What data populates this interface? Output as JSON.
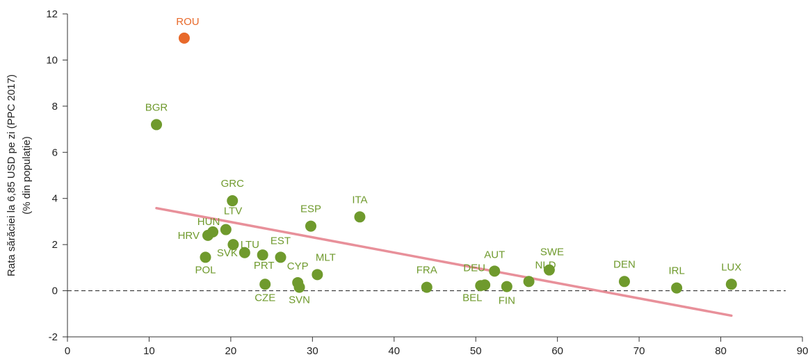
{
  "chart_data": {
    "type": "scatter",
    "title": "",
    "xlabel": "",
    "ylabel": "Rata sărăciei la 6,85 USD pe zi (PPC 2017)",
    "ylabel_sub": "(% din populație)",
    "xlim": [
      0,
      90
    ],
    "ylim": [
      -2,
      12
    ],
    "xticks": [
      0,
      10,
      20,
      30,
      40,
      50,
      60,
      70,
      80,
      90
    ],
    "yticks": [
      -2,
      0,
      2,
      4,
      6,
      8,
      10,
      12
    ],
    "grid": false,
    "legend": "none",
    "colors": {
      "points": "#6f9a2d",
      "highlight": "#e8692a",
      "trend": "#e8909a",
      "zero_line": "#333333",
      "axis": "#333333"
    },
    "points": [
      {
        "label": "ROU",
        "x": 14.3,
        "y": 10.95,
        "highlight": true
      },
      {
        "label": "BGR",
        "x": 10.9,
        "y": 7.2
      },
      {
        "label": "GRC",
        "x": 20.2,
        "y": 3.9
      },
      {
        "label": "ITA",
        "x": 35.8,
        "y": 3.2
      },
      {
        "label": "ESP",
        "x": 29.8,
        "y": 2.8
      },
      {
        "label": "LTV",
        "x": 19.4,
        "y": 2.65
      },
      {
        "label": "HUN",
        "x": 17.8,
        "y": 2.55
      },
      {
        "label": "HRV",
        "x": 17.2,
        "y": 2.4
      },
      {
        "label": "LTU",
        "x": 20.3,
        "y": 2.0
      },
      {
        "label": "SVK",
        "x": 21.7,
        "y": 1.65
      },
      {
        "label": "PRT",
        "x": 23.9,
        "y": 1.55
      },
      {
        "label": "EST",
        "x": 26.1,
        "y": 1.45
      },
      {
        "label": "POL",
        "x": 16.9,
        "y": 1.45
      },
      {
        "label": "AUT",
        "x": 52.3,
        "y": 0.85
      },
      {
        "label": "SWE",
        "x": 59.0,
        "y": 0.9
      },
      {
        "label": "MLT",
        "x": 30.6,
        "y": 0.7
      },
      {
        "label": "NLD",
        "x": 56.5,
        "y": 0.4
      },
      {
        "label": "DEN",
        "x": 68.2,
        "y": 0.4
      },
      {
        "label": "CYP",
        "x": 28.2,
        "y": 0.35
      },
      {
        "label": "CZE",
        "x": 24.2,
        "y": 0.28
      },
      {
        "label": "LUX",
        "x": 81.3,
        "y": 0.28
      },
      {
        "label": "DEU",
        "x": 51.1,
        "y": 0.25
      },
      {
        "label": "BEL",
        "x": 50.6,
        "y": 0.22
      },
      {
        "label": "FIN",
        "x": 53.8,
        "y": 0.18
      },
      {
        "label": "FRA",
        "x": 44.0,
        "y": 0.15
      },
      {
        "label": "SVN",
        "x": 28.4,
        "y": 0.15
      },
      {
        "label": "IRL",
        "x": 74.6,
        "y": 0.12
      }
    ],
    "trendline": {
      "x": [
        10.9,
        81.3
      ],
      "y": [
        3.58,
        -1.08
      ]
    },
    "reference_line": {
      "y": 0,
      "style": "dashed"
    }
  }
}
